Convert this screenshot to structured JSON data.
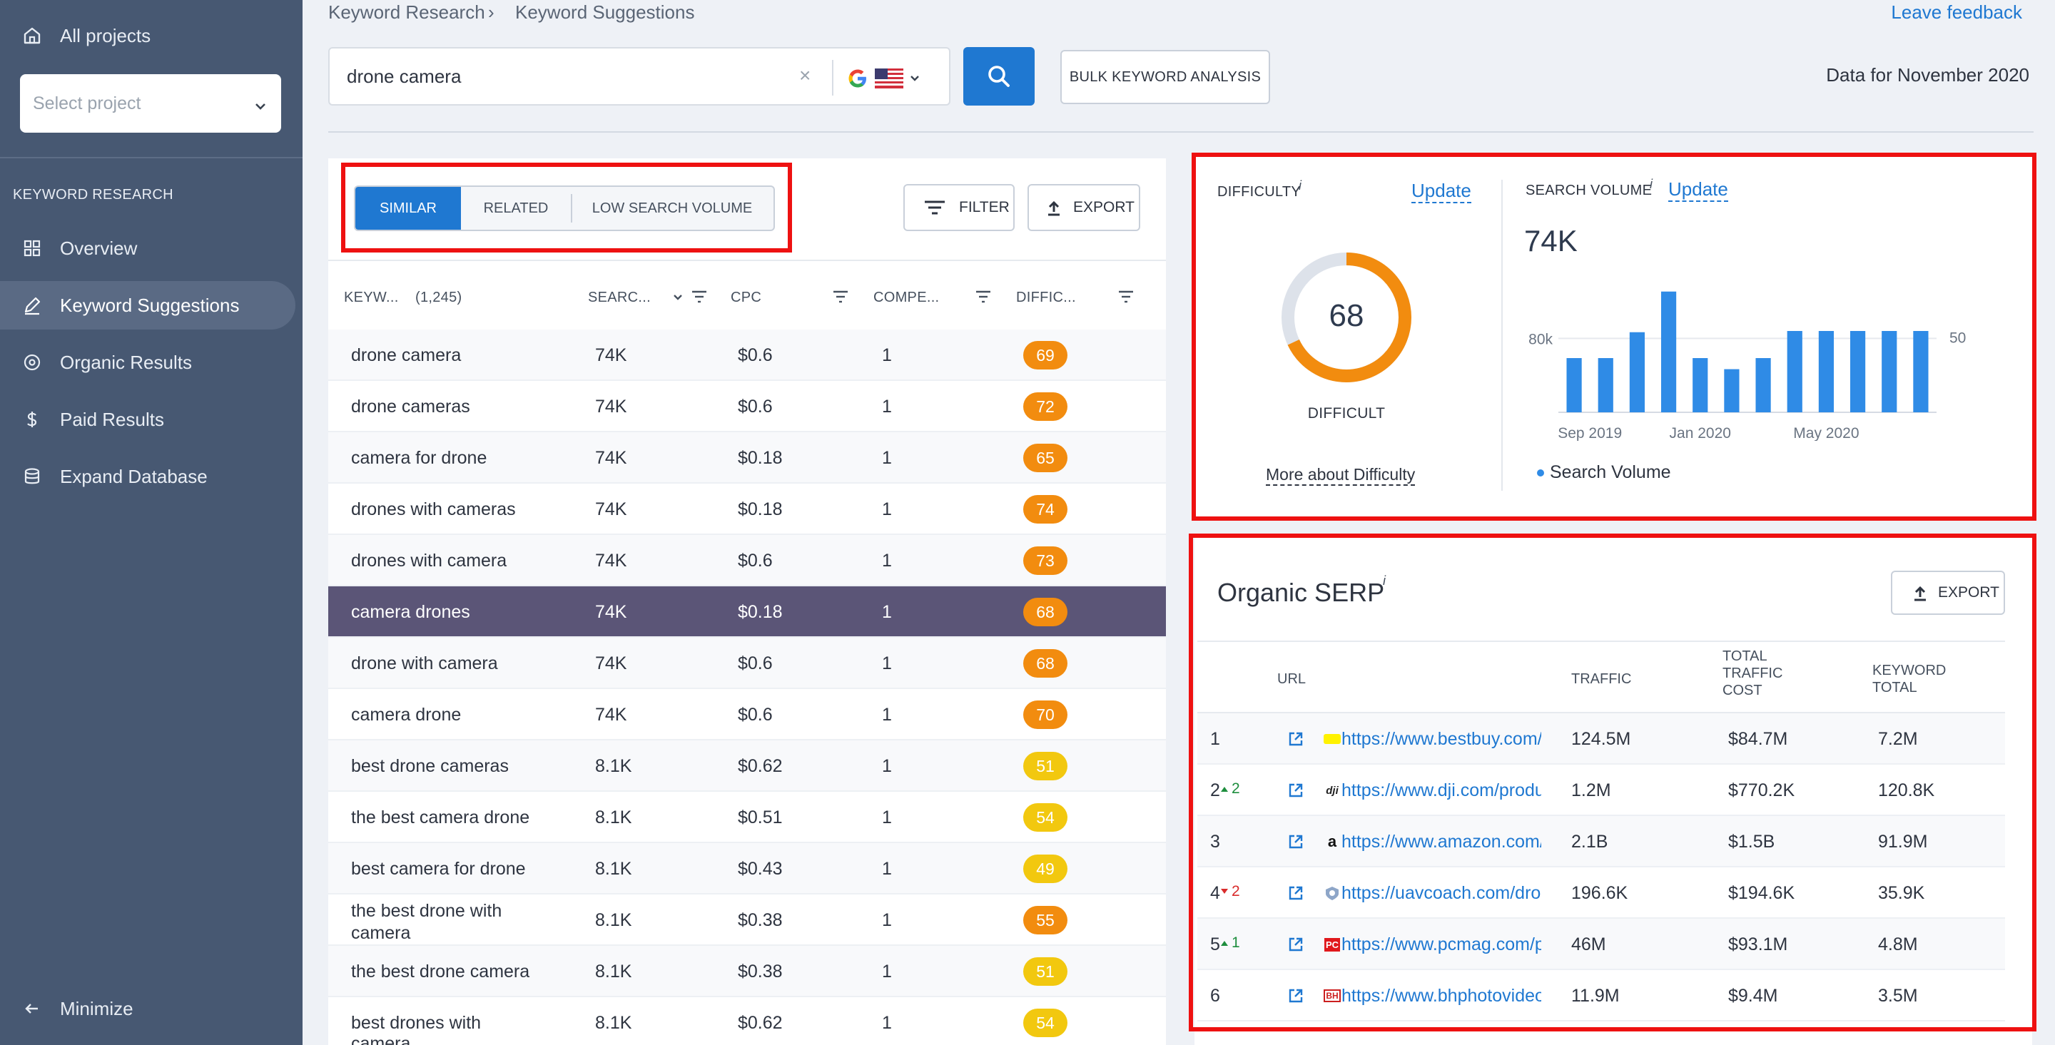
{
  "sidebar": {
    "all_projects": "All projects",
    "select_placeholder": "Select project",
    "section_title": "KEYWORD RESEARCH",
    "items": [
      {
        "label": "Overview",
        "icon": "grid-icon"
      },
      {
        "label": "Keyword Suggestions",
        "icon": "edit-icon",
        "active": true
      },
      {
        "label": "Organic Results",
        "icon": "target-icon"
      },
      {
        "label": "Paid Results",
        "icon": "dollar-icon"
      },
      {
        "label": "Expand Database",
        "icon": "database-icon"
      }
    ],
    "minimize": "Minimize"
  },
  "header": {
    "breadcrumb_1": "Keyword Research",
    "breadcrumb_sep": "›",
    "breadcrumb_2": "Keyword Suggestions",
    "leave_feedback": "Leave feedback",
    "search_value": "drone camera",
    "clear": "×",
    "bulk_label": "BULK KEYWORD ANALYSIS",
    "data_for": "Data for November 2020"
  },
  "keywords": {
    "tabs": [
      "SIMILAR",
      "RELATED",
      "LOW SEARCH VOLUME"
    ],
    "filter_label": "FILTER",
    "export_label": "EXPORT",
    "col_keyword": "KEYW...",
    "col_count": "(1,245)",
    "col_search": "SEARC...",
    "col_cpc": "CPC",
    "col_comp": "COMPE...",
    "col_diff": "DIFFIC...",
    "rows": [
      {
        "kw": "drone camera",
        "vol": "74K",
        "cpc": "$0.6",
        "comp": "1",
        "diff": "69",
        "color": "#f28c0f"
      },
      {
        "kw": "drone cameras",
        "vol": "74K",
        "cpc": "$0.6",
        "comp": "1",
        "diff": "72",
        "color": "#f28c0f"
      },
      {
        "kw": "camera for drone",
        "vol": "74K",
        "cpc": "$0.18",
        "comp": "1",
        "diff": "65",
        "color": "#f28c0f"
      },
      {
        "kw": "drones with cameras",
        "vol": "74K",
        "cpc": "$0.18",
        "comp": "1",
        "diff": "74",
        "color": "#f28c0f"
      },
      {
        "kw": "drones with camera",
        "vol": "74K",
        "cpc": "$0.6",
        "comp": "1",
        "diff": "73",
        "color": "#f28c0f"
      },
      {
        "kw": "camera drones",
        "vol": "74K",
        "cpc": "$0.18",
        "comp": "1",
        "diff": "68",
        "color": "#f28c0f",
        "selected": true
      },
      {
        "kw": "drone with camera",
        "vol": "74K",
        "cpc": "$0.6",
        "comp": "1",
        "diff": "68",
        "color": "#f28c0f"
      },
      {
        "kw": "camera drone",
        "vol": "74K",
        "cpc": "$0.6",
        "comp": "1",
        "diff": "70",
        "color": "#f28c0f"
      },
      {
        "kw": "best drone cameras",
        "vol": "8.1K",
        "cpc": "$0.62",
        "comp": "1",
        "diff": "51",
        "color": "#f2c80f"
      },
      {
        "kw": "the best camera drone",
        "vol": "8.1K",
        "cpc": "$0.51",
        "comp": "1",
        "diff": "54",
        "color": "#f2c80f"
      },
      {
        "kw": "best camera for drone",
        "vol": "8.1K",
        "cpc": "$0.43",
        "comp": "1",
        "diff": "49",
        "color": "#f2c80f"
      },
      {
        "kw": "the best drone with camera",
        "vol": "8.1K",
        "cpc": "$0.38",
        "comp": "1",
        "diff": "55",
        "color": "#f28c0f"
      },
      {
        "kw": "the best drone camera",
        "vol": "8.1K",
        "cpc": "$0.38",
        "comp": "1",
        "diff": "51",
        "color": "#f2c80f"
      },
      {
        "kw": "best drones with camera",
        "vol": "8.1K",
        "cpc": "$0.62",
        "comp": "1",
        "diff": "54",
        "color": "#f2c80f"
      }
    ]
  },
  "difficulty": {
    "title": "DIFFICULTY",
    "info": "i",
    "update": "Update",
    "score": "68",
    "score_fraction": 0.68,
    "label": "DIFFICULT",
    "more": "More about Difficulty",
    "color": "#f28c0f"
  },
  "search_volume": {
    "title": "SEARCH VOLUME",
    "info": "i",
    "update": "Update",
    "value": "74K",
    "legend": "Search Volume",
    "chart_data": {
      "type": "bar",
      "values": [
        44,
        44,
        65,
        98,
        44,
        35,
        44,
        66,
        66,
        66,
        66,
        66
      ],
      "ylim": [
        0,
        110
      ],
      "y_tick_label": "80k",
      "y_tick_value": 60,
      "right_tick_label": "50",
      "x_tick_labels": [
        {
          "label": "Sep 2019",
          "index": 0.5
        },
        {
          "label": "Jan 2020",
          "index": 4
        },
        {
          "label": "May 2020",
          "index": 8
        }
      ],
      "series_name": "Search Volume",
      "color": "#2f8be6"
    }
  },
  "serp": {
    "title": "Organic SERP",
    "info": "i",
    "export_label": "EXPORT",
    "col_url": "URL",
    "col_traffic": "TRAFFIC",
    "col_cost_1": "TOTAL",
    "col_cost_2": "TRAFFIC",
    "col_cost_3": "COST",
    "col_kw_1": "KEYWORD",
    "col_kw_2": "TOTAL",
    "rows": [
      {
        "pos": "1",
        "change": "",
        "dir": "",
        "favicon": "bestbuy",
        "url": "https://www.bestbuy.com/site/drones",
        "traffic": "124.5M",
        "cost": "$84.7M",
        "kw": "7.2M"
      },
      {
        "pos": "2",
        "change": "2",
        "dir": "up",
        "favicon": "dji",
        "url": "https://www.dji.com/products/camera-drones",
        "traffic": "1.2M",
        "cost": "$770.2K",
        "kw": "120.8K"
      },
      {
        "pos": "3",
        "change": "",
        "dir": "",
        "favicon": "amazon",
        "url": "https://www.amazon.com/drone-camera",
        "traffic": "2.1B",
        "cost": "$1.5B",
        "kw": "91.9M"
      },
      {
        "pos": "4",
        "change": "2",
        "dir": "down",
        "favicon": "uavcoach",
        "url": "https://uavcoach.com/drone-with-camera",
        "traffic": "196.6K",
        "cost": "$194.6K",
        "kw": "35.9K"
      },
      {
        "pos": "5",
        "change": "1",
        "dir": "up",
        "favicon": "pcmag",
        "url": "https://www.pcmag.com/picks/the-best-drones",
        "traffic": "46M",
        "cost": "$93.1M",
        "kw": "4.8M"
      },
      {
        "pos": "6",
        "change": "",
        "dir": "",
        "favicon": "bhphoto",
        "url": "https://www.bhphotovideo.com/drones",
        "traffic": "11.9M",
        "cost": "$9.4M",
        "kw": "3.5M"
      }
    ]
  },
  "colors": {
    "accent": "#1f78d1",
    "sidebar": "#475872",
    "highlight": "#ee1111",
    "selected_row": "#5b5577"
  }
}
